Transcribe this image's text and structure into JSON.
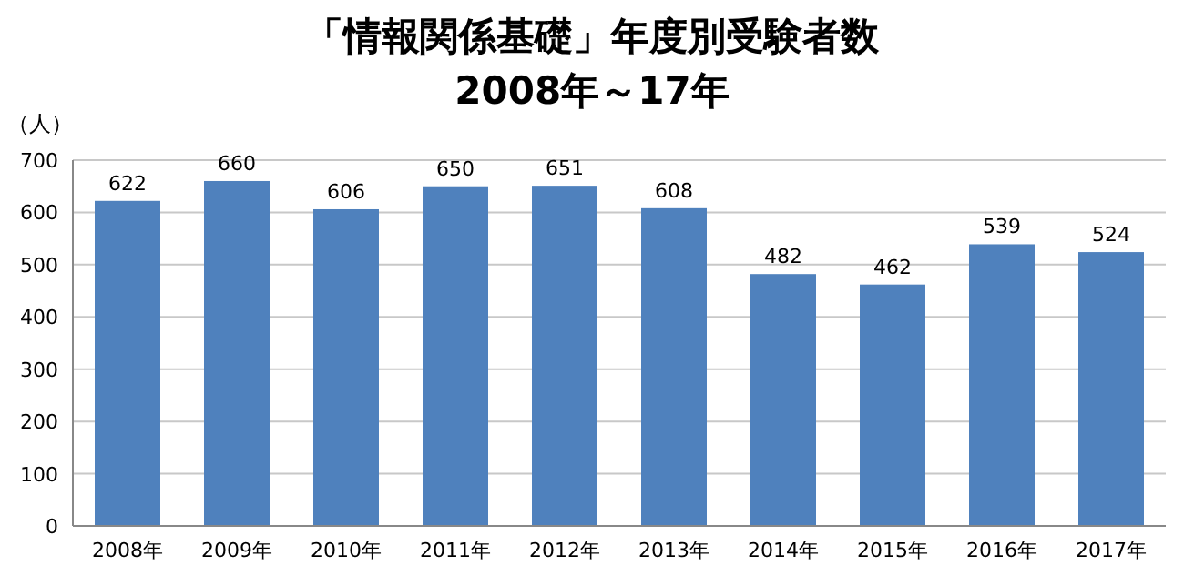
{
  "chart_data": {
    "type": "bar",
    "title": "「情報関係基礎」年度別受験者数",
    "subtitle": "2008年～17年",
    "ylabel": "（人）",
    "categories": [
      "2008年",
      "2009年",
      "2010年",
      "2011年",
      "2012年",
      "2013年",
      "2014年",
      "2015年",
      "2016年",
      "2017年"
    ],
    "values": [
      622,
      660,
      606,
      650,
      651,
      608,
      482,
      462,
      539,
      524
    ],
    "color": "#4f81bd",
    "ylim": [
      0,
      700
    ],
    "yticks": [
      0,
      100,
      200,
      300,
      400,
      500,
      600,
      700
    ],
    "grid": "y",
    "data_labels": true
  }
}
